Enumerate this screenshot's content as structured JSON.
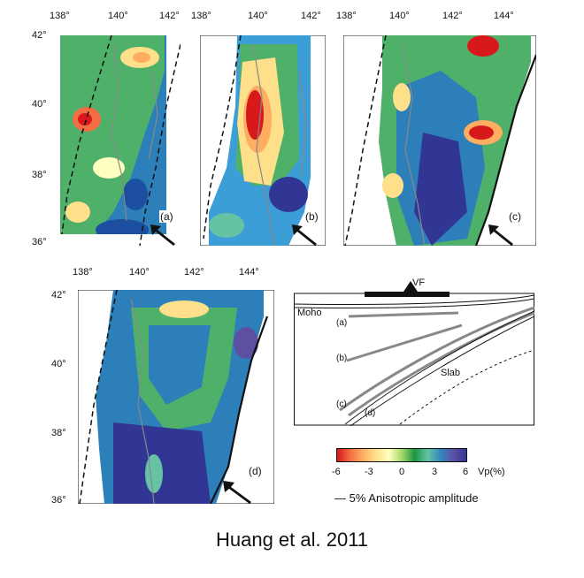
{
  "panels": [
    {
      "id": "a",
      "label": "(a)",
      "lon_ticks": [
        "138°",
        "140°",
        "142°"
      ],
      "lat_ticks": [
        "42°",
        "40°",
        "38°",
        "36°"
      ]
    },
    {
      "id": "b",
      "label": "(b)",
      "lon_ticks": [
        "138°",
        "140°",
        "142°"
      ],
      "lat_ticks": []
    },
    {
      "id": "c",
      "label": "(c)",
      "lon_ticks": [
        "138°",
        "140°",
        "142°",
        "144°"
      ],
      "lat_ticks": []
    },
    {
      "id": "d",
      "label": "(d)",
      "lon_ticks": [
        "138°",
        "140°",
        "142°",
        "144°"
      ],
      "lat_ticks": [
        "42°",
        "40°",
        "38°",
        "36°"
      ]
    }
  ],
  "cross_section": {
    "vf_label": "VF",
    "moho_label": "Moho",
    "slab_label": "Slab",
    "line_labels": [
      "(a)",
      "(b)",
      "(c)",
      "(d)"
    ]
  },
  "colorbar": {
    "ticks": [
      "-6",
      "-3",
      "0",
      "3",
      "6"
    ],
    "unit": "Vp(%)",
    "colors": [
      "#d7191c",
      "#f46d43",
      "#fdae61",
      "#fee08b",
      "#ffffbf",
      "#a6d96a",
      "#1a9641",
      "#66c2a5",
      "#3288bd",
      "#5e4fa2",
      "#313695"
    ]
  },
  "legend": {
    "anisotropy": "— 5% Anisotropic amplitude"
  },
  "credit": "Huang et al. 2011"
}
